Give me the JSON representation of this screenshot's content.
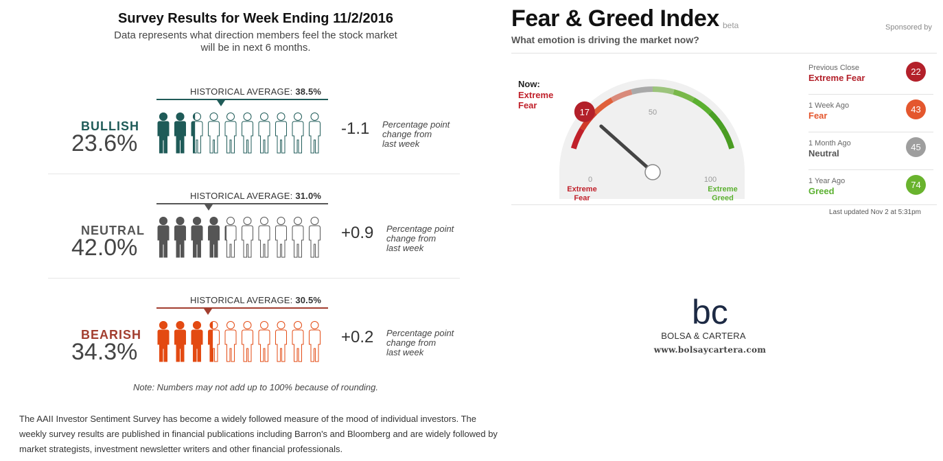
{
  "survey": {
    "title": "Survey Results for Week Ending 11/2/2016",
    "subtitle": "Data represents what direction members feel the stock market will be in next 6 months.",
    "hist_prefix": "HISTORICAL AVERAGE:",
    "change_text_1": "Percentage point",
    "change_text_2": "change from",
    "change_text_3": "last week",
    "rows": [
      {
        "label": "BULLISH",
        "value": "23.6%",
        "percent": 23.6,
        "hist_avg": "38.5%",
        "hist_avg_num": 38.5,
        "change": "-1.1",
        "color": "#1f5b58",
        "line_color": "#1f5b58"
      },
      {
        "label": "NEUTRAL",
        "value": "42.0%",
        "percent": 42.0,
        "hist_avg": "31.0%",
        "hist_avg_num": 31.0,
        "change": "+0.9",
        "color": "#555555",
        "line_color": "#555555"
      },
      {
        "label": "BEARISH",
        "value": "34.3%",
        "percent": 34.3,
        "hist_avg": "30.5%",
        "hist_avg_num": 30.5,
        "change": "+0.2",
        "color": "#e34a12",
        "line_color": "#a23d2e"
      }
    ],
    "note": "Note: Numbers may not add up to 100% because of rounding.",
    "description": "The AAII Investor Sentiment Survey has become a widely followed measure of the mood of individual investors. The weekly survey results are published in financial publications including Barron's and Bloomberg and are widely followed by market strategists, investment newsletter writers and other financial professionals."
  },
  "fear_greed": {
    "title": "Fear & Greed Index",
    "beta": "beta",
    "sponsored": "Sponsored by",
    "subtitle": "What emotion is driving the market now?",
    "now_label": "Now:",
    "now_mood_1": "Extreme",
    "now_mood_2": "Fear",
    "now_value": 17,
    "now_value_text": "17",
    "gauge_min": "0",
    "gauge_mid": "50",
    "gauge_max": "100",
    "left_label_1": "Extreme",
    "left_label_2": "Fear",
    "right_label_1": "Extreme",
    "right_label_2": "Greed",
    "history": [
      {
        "when": "Previous Close",
        "mood": "Extreme Fear",
        "value": "22",
        "color": "#b3202a"
      },
      {
        "when": "1 Week Ago",
        "mood": "Fear",
        "value": "43",
        "color": "#e4572e"
      },
      {
        "when": "1 Month Ago",
        "mood": "Neutral",
        "value": "45",
        "color": "#9e9e9e"
      },
      {
        "when": "1 Year Ago",
        "mood": "Greed",
        "value": "74",
        "color": "#69b32d"
      }
    ],
    "updated": "Last updated Nov 2 at 5:31pm",
    "colors": {
      "fear": "#c0202a",
      "neutral": "#a9a9a9",
      "greed": "#5bb030"
    }
  },
  "logo": {
    "mark": "bc",
    "name": "BOLSA & CARTERA",
    "url": "www.bolsaycartera.com"
  }
}
